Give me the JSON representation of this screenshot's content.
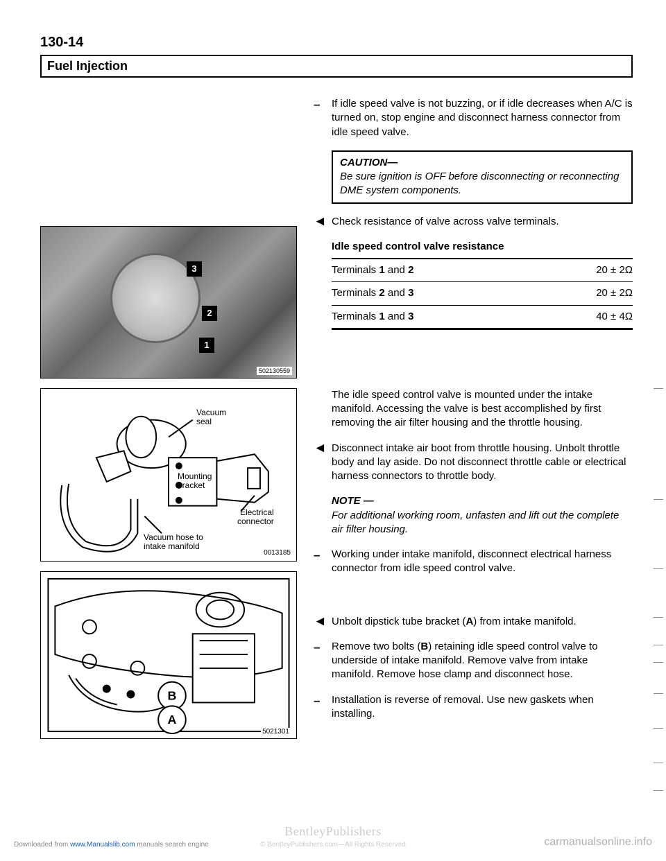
{
  "page_number": "130-14",
  "section_title": "Fuel Injection",
  "figures": {
    "photo": {
      "markers": [
        "3",
        "2",
        "1"
      ],
      "id": "502130559"
    },
    "diagram1": {
      "labels": {
        "vacuum_seal": "Vacuum\nseal",
        "mounting_bracket": "Mounting\nbracket",
        "electrical_connector": "Electrical\nconnector",
        "vacuum_hose": "Vacuum hose to\nintake manifold"
      },
      "id": "0013185"
    },
    "diagram2": {
      "markers": [
        "B",
        "A"
      ],
      "id": "5021301"
    }
  },
  "steps": {
    "s1": "If idle speed valve is not buzzing, or if idle decreases when A/C is turned on, stop engine and disconnect harness connector from idle speed valve.",
    "caution_title": "CAUTION—",
    "caution_body": "Be sure ignition is OFF before disconnecting or reconnecting DME system components.",
    "s2": "Check resistance of valve across valve terminals.",
    "table_title": "Idle speed control valve resistance",
    "table": [
      {
        "label": "Terminals 1 and 2",
        "val": "20 ± 2Ω"
      },
      {
        "label": "Terminals 2 and 3",
        "val": "20 ± 2Ω"
      },
      {
        "label": "Terminals 1 and 3",
        "val": "40 ± 4Ω"
      }
    ],
    "para1": "The idle speed control valve is mounted under the intake manifold. Accessing the valve is best accomplished by first removing the air filter housing and the throttle housing.",
    "s3": "Disconnect intake air boot from throttle housing. Unbolt throttle body and lay aside. Do not disconnect throttle cable or electrical harness connectors to throttle body.",
    "note_title": "NOTE —",
    "note_body": "For additional working room, unfasten and lift out the complete air filter housing.",
    "s4": "Working under intake manifold, disconnect electrical harness connector from idle speed control valve.",
    "s5": "Unbolt dipstick tube bracket (A) from intake manifold.",
    "s6": "Remove two bolts (B) retaining idle speed control valve to underside of intake manifold. Remove valve from intake manifold. Remove hose clamp and disconnect hose.",
    "s7": "Installation is reverse of removal. Use new gaskets when installing."
  },
  "footer": {
    "download": "Downloaded from www.Manualslib.com manuals search engine",
    "download_link": "www.Manualslib.com",
    "publisher": "BentleyPublishers",
    "publisher_sub": ".com",
    "rights": "© BentleyPublishers.com—All Rights Reserved",
    "watermark": "carmanualsonline.info"
  }
}
